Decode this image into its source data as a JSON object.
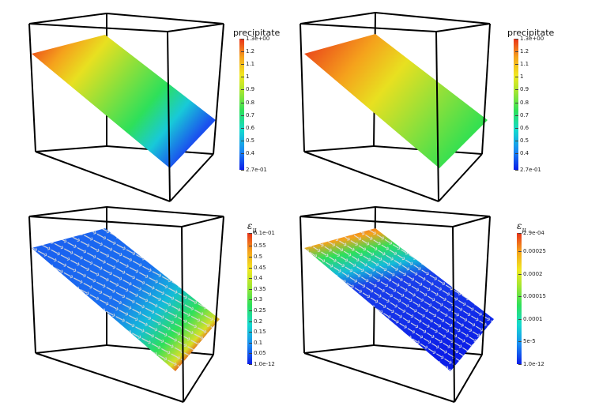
{
  "colors": {
    "background": "#ffffff",
    "box": "#000000",
    "colormap": [
      "#0b1ee8",
      "#1a8cf2",
      "#14d9cf",
      "#2ee05a",
      "#a6e630",
      "#f0e820",
      "#f5a21c",
      "#e8321a"
    ]
  },
  "panels": [
    {
      "id": "top-left",
      "field": "precipitate",
      "colorbar": {
        "title": "precipitate",
        "max_label": "1.3e+00",
        "min_label": "2.7e-01",
        "ticks": [
          "1.2",
          "1.1",
          "1",
          "0.9",
          "0.8",
          "0.7",
          "0.6",
          "0.5",
          "0.4"
        ],
        "tick_values": [
          1.2,
          1.1,
          1.0,
          0.9,
          0.8,
          0.7,
          0.6,
          0.5,
          0.4
        ],
        "min_value": 0.27,
        "max_value": 1.3
      }
    },
    {
      "id": "top-right",
      "field": "precipitate",
      "colorbar": {
        "title": "precipitate",
        "max_label": "1.3e+00",
        "min_label": "2.7e-01",
        "ticks": [
          "1.2",
          "1.1",
          "1",
          "0.9",
          "0.8",
          "0.7",
          "0.6",
          "0.5",
          "0.4"
        ],
        "tick_values": [
          1.2,
          1.1,
          1.0,
          0.9,
          0.8,
          0.7,
          0.6,
          0.5,
          0.4
        ],
        "min_value": 0.27,
        "max_value": 1.3
      }
    },
    {
      "id": "bottom-left",
      "field": "epsilon_mu",
      "colorbar": {
        "title": "ε",
        "title_sub": "μ",
        "max_label": "6.1e-01",
        "min_label": "1.0e-12",
        "ticks": [
          "0.55",
          "0.5",
          "0.45",
          "0.4",
          "0.35",
          "0.3",
          "0.25",
          "0.2",
          "0.15",
          "0.1",
          "0.05"
        ],
        "tick_values": [
          0.55,
          0.5,
          0.45,
          0.4,
          0.35,
          0.3,
          0.25,
          0.2,
          0.15,
          0.1,
          0.05
        ],
        "min_value": 0.0,
        "max_value": 0.61
      }
    },
    {
      "id": "bottom-right",
      "field": "epsilon_mu",
      "colorbar": {
        "title": "ε",
        "title_sub": "μ",
        "max_label": "2.9e-04",
        "min_label": "1.0e-12",
        "ticks": [
          "0.00025",
          "0.0002",
          "0.00015",
          "0.0001",
          "5e-5"
        ],
        "tick_values": [
          0.00025,
          0.0002,
          0.00015,
          0.0001,
          5e-05
        ],
        "min_value": 0.0,
        "max_value": 0.00029
      }
    }
  ]
}
